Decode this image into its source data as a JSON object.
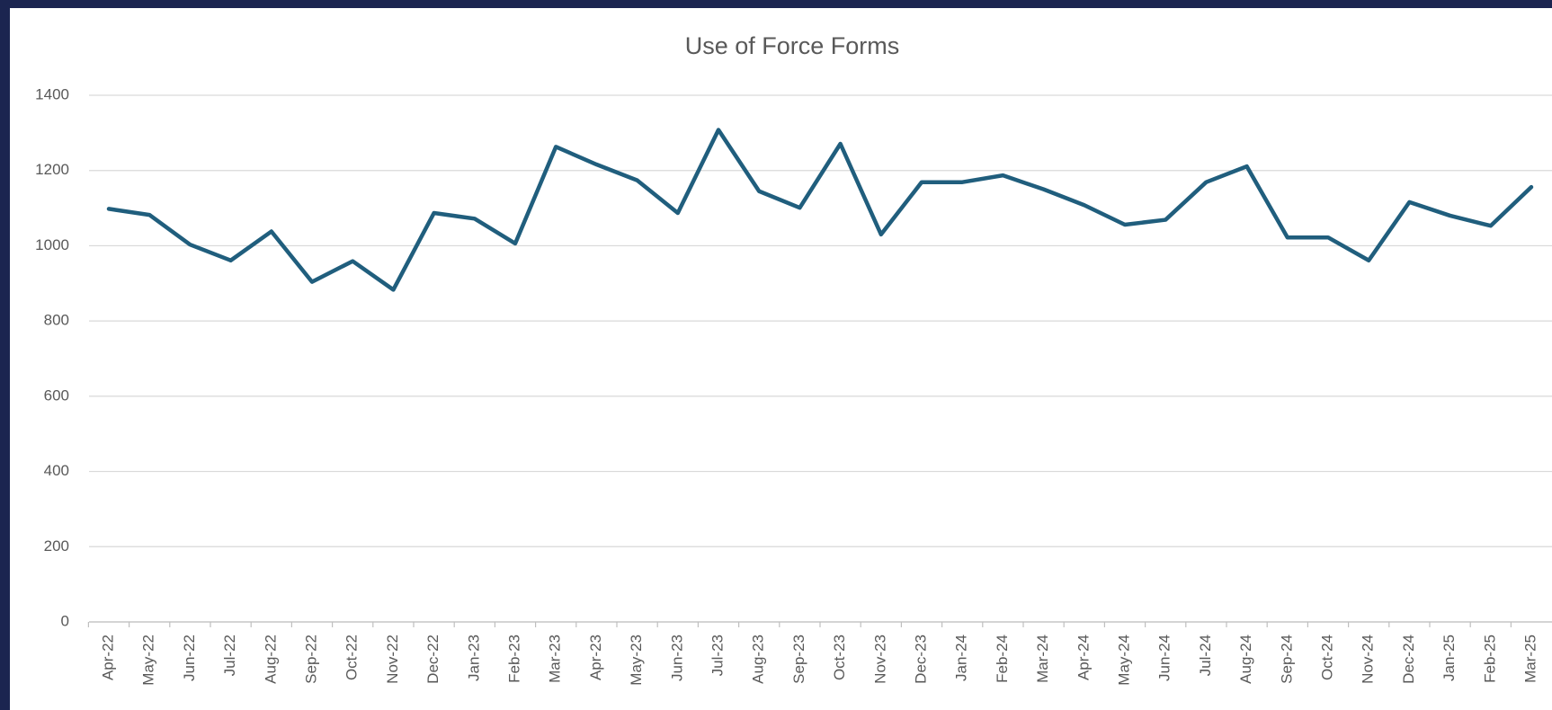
{
  "chart_data": {
    "type": "line",
    "title": "Use of Force Forms",
    "categories": [
      "Apr-22",
      "May-22",
      "Jun-22",
      "Jul-22",
      "Aug-22",
      "Sep-22",
      "Oct-22",
      "Nov-22",
      "Dec-22",
      "Jan-23",
      "Feb-23",
      "Mar-23",
      "Apr-23",
      "May-23",
      "Jun-23",
      "Jul-23",
      "Aug-23",
      "Sep-23",
      "Oct-23",
      "Nov-23",
      "Dec-23",
      "Jan-24",
      "Feb-24",
      "Mar-24",
      "Apr-24",
      "May-24",
      "Jun-24",
      "Jul-24",
      "Aug-24",
      "Sep-24",
      "Oct-24",
      "Nov-24",
      "Dec-24",
      "Jan-25",
      "Feb-25",
      "Mar-25"
    ],
    "values": [
      1098,
      1082,
      1003,
      961,
      1038,
      904,
      959,
      883,
      1087,
      1072,
      1006,
      1263,
      1216,
      1174,
      1087,
      1308,
      1145,
      1101,
      1271,
      1030,
      1169,
      1169,
      1187,
      1150,
      1108,
      1056,
      1069,
      1169,
      1211,
      1022,
      1022,
      961,
      1116,
      1080,
      1053,
      1156
    ],
    "color": "#205e7d",
    "ylim": [
      0,
      1400
    ],
    "yticks": [
      0,
      200,
      400,
      600,
      800,
      1000,
      1200,
      1400
    ],
    "grid": true
  }
}
